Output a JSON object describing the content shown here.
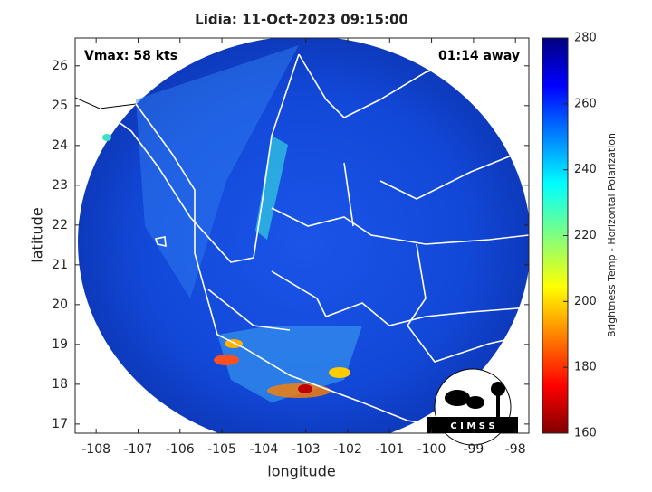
{
  "chart_data": {
    "type": "map",
    "title": "Lidia: 11-Oct-2023 09:15:00",
    "annotations": [
      "Vmax: 58 kts",
      "01:14 away"
    ],
    "x_label": "longitude",
    "y_label": "latitude",
    "xlim": [
      -108.5,
      -97.68
    ],
    "ylim": [
      16.77,
      26.7
    ],
    "xticks": [
      -108,
      -107,
      -106,
      -105,
      -104,
      -103,
      -102,
      -101,
      -100,
      -99,
      -98
    ],
    "yticks": [
      17,
      18,
      19,
      20,
      21,
      22,
      23,
      24,
      25,
      26
    ],
    "colorbar": {
      "label": "Brightness Temp - Horizontal Polarization",
      "lim": [
        160,
        280
      ],
      "ticks": [
        160,
        180,
        200,
        220,
        240,
        260,
        280
      ]
    }
  },
  "logo": {
    "text": "C I M S S"
  }
}
